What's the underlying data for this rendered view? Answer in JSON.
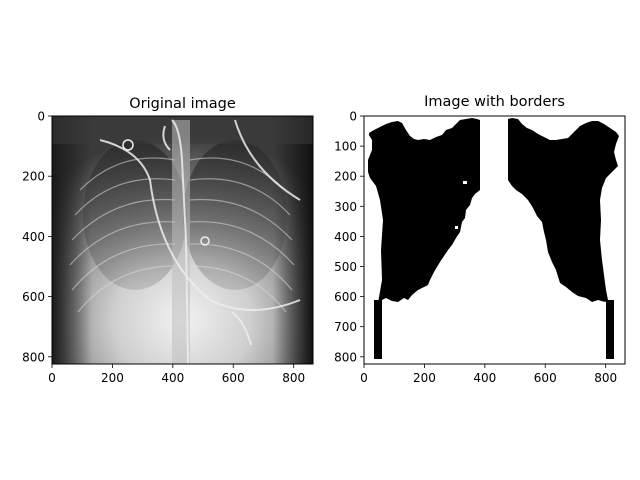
{
  "chart_data": [
    {
      "type": "image",
      "title": "Original image",
      "colormap": "gray",
      "xlim": [
        0,
        864
      ],
      "ylim": [
        824,
        0
      ],
      "xticks": [
        0,
        200,
        400,
        600,
        800
      ],
      "yticks": [
        0,
        200,
        400,
        600,
        800
      ],
      "xtick_labels": [
        "0",
        "200",
        "400",
        "600",
        "800"
      ],
      "ytick_labels": [
        "0",
        "200",
        "400",
        "600",
        "800"
      ]
    },
    {
      "type": "image",
      "title": "Image with borders",
      "colormap": "binary",
      "xlim": [
        0,
        864
      ],
      "ylim": [
        824,
        0
      ],
      "xticks": [
        0,
        200,
        400,
        600,
        800
      ],
      "yticks": [
        0,
        100,
        200,
        300,
        400,
        500,
        600,
        700,
        800
      ],
      "xtick_labels": [
        "0",
        "200",
        "400",
        "600",
        "800"
      ],
      "ytick_labels": [
        "0",
        "100",
        "200",
        "300",
        "400",
        "500",
        "600",
        "700",
        "800"
      ]
    }
  ]
}
